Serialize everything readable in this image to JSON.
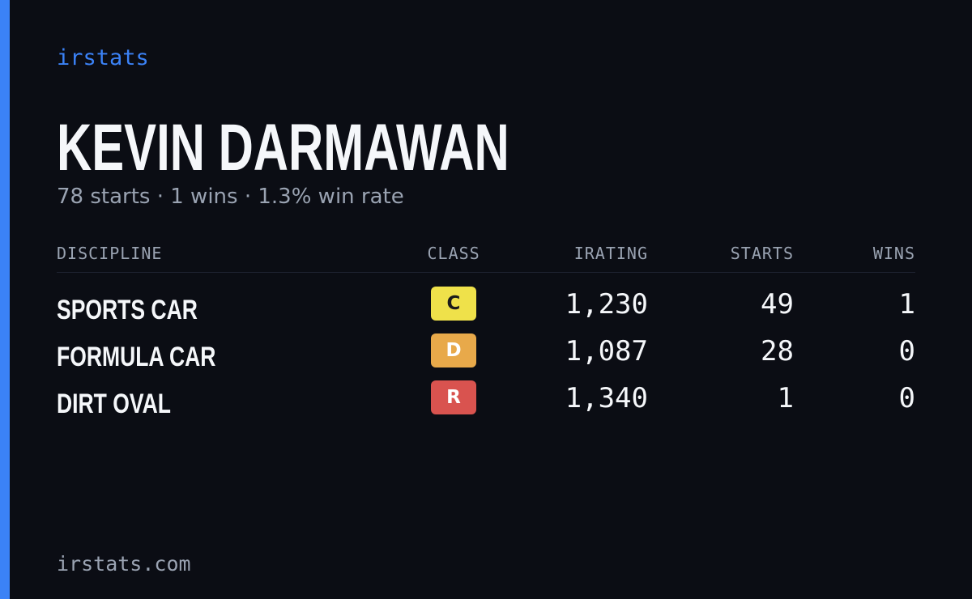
{
  "brand": "irstats",
  "driver": {
    "name": "KEVIN DARMAWAN",
    "summary": "78 starts · 1 wins · 1.3% win rate"
  },
  "table": {
    "headers": [
      "DISCIPLINE",
      "CLASS",
      "IRATING",
      "STARTS",
      "WINS"
    ],
    "rows": [
      [
        "SPORTS CAR",
        "C",
        "1,230",
        "49",
        "1"
      ],
      [
        "FORMULA CAR",
        "D",
        "1,087",
        "28",
        "0"
      ],
      [
        "DIRT OVAL",
        "R",
        "1,340",
        "1",
        "0"
      ]
    ]
  },
  "footer": "irstats.com"
}
